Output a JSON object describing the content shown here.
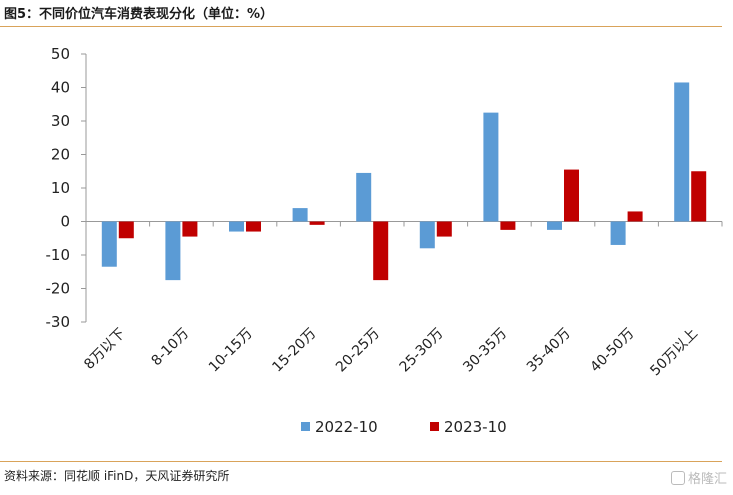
{
  "header": {
    "title": "图5：不同价位汽车消费表现分化（单位：%）"
  },
  "footer": {
    "source": "资料来源：同花顺 iFinD，天风证券研究所",
    "watermark": "格隆汇"
  },
  "colors": {
    "series_2022": "#5b9bd5",
    "series_2023": "#c00000",
    "rule": "#d9a35a"
  },
  "chart_data": {
    "type": "bar",
    "categories": [
      "8万以下",
      "8-10万",
      "10-15万",
      "15-20万",
      "20-25万",
      "25-30万",
      "30-35万",
      "35-40万",
      "40-50万",
      "50万以上"
    ],
    "series": [
      {
        "name": "2022-10",
        "values": [
          -13.5,
          -17.5,
          -3,
          4,
          14.5,
          -8,
          32.5,
          -2.5,
          -7,
          41.5
        ]
      },
      {
        "name": "2023-10",
        "values": [
          -5,
          -4.5,
          -3,
          -1,
          -17.5,
          -4.5,
          -2.5,
          15.5,
          3,
          15
        ]
      }
    ],
    "ylim": [
      -30,
      50
    ],
    "yticks": [
      50,
      40,
      30,
      20,
      10,
      0,
      -10,
      -20,
      -30
    ],
    "legend": "bottom-center",
    "grid": false
  }
}
